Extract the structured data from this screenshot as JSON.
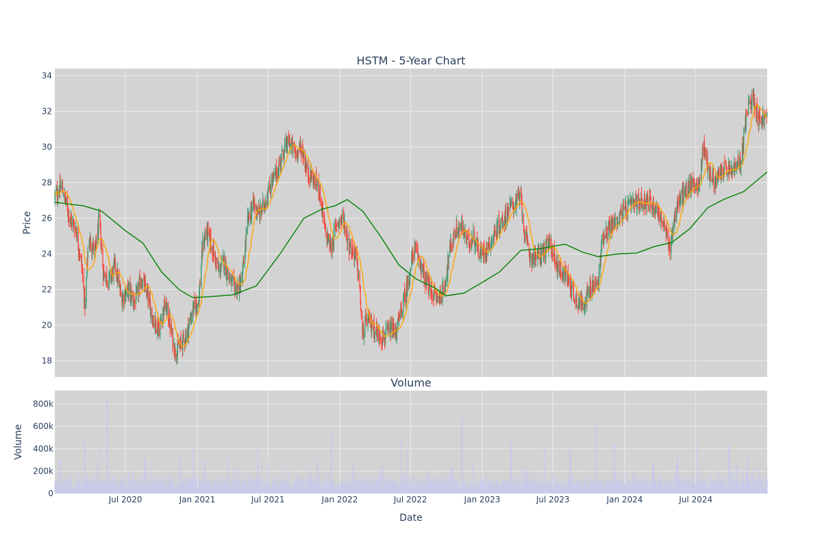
{
  "chart_data": [
    {
      "type": "candlestick",
      "title": "HSTM - 5-Year Chart",
      "ylabel": "Price",
      "ylim": [
        17.1,
        34.4
      ],
      "y_ticks": [
        "18",
        "20",
        "22",
        "24",
        "26",
        "28",
        "30",
        "32",
        "34"
      ],
      "y_tick_values": [
        18,
        20,
        22,
        24,
        26,
        28,
        30,
        32,
        34
      ],
      "x_range": [
        "2020-01-02",
        "2024-12-31"
      ],
      "grid": true,
      "colors": {
        "up": "#3d9970",
        "down": "#ff4136",
        "ma_short": "#ffa500",
        "ma_long": "#008000",
        "background": "#d3d3d3"
      },
      "price_path": [
        [
          "2020-01-02",
          27.2
        ],
        [
          "2020-01-20",
          27.8
        ],
        [
          "2020-02-10",
          26.0
        ],
        [
          "2020-02-25",
          25.4
        ],
        [
          "2020-03-10",
          23.5
        ],
        [
          "2020-03-20",
          21.0
        ],
        [
          "2020-03-28",
          24.8
        ],
        [
          "2020-04-15",
          24.2
        ],
        [
          "2020-04-25",
          26.0
        ],
        [
          "2020-05-05",
          23.0
        ],
        [
          "2020-05-20",
          22.5
        ],
        [
          "2020-06-05",
          23.4
        ],
        [
          "2020-06-20",
          21.5
        ],
        [
          "2020-07-10",
          22.0
        ],
        [
          "2020-07-25",
          21.2
        ],
        [
          "2020-08-10",
          22.6
        ],
        [
          "2020-08-25",
          21.8
        ],
        [
          "2020-09-10",
          20.3
        ],
        [
          "2020-09-25",
          19.8
        ],
        [
          "2020-10-10",
          21.2
        ],
        [
          "2020-10-20",
          20.4
        ],
        [
          "2020-11-05",
          18.5
        ],
        [
          "2020-11-20",
          18.9
        ],
        [
          "2020-12-05",
          19.5
        ],
        [
          "2020-12-20",
          20.8
        ],
        [
          "2021-01-05",
          21.5
        ],
        [
          "2021-01-15",
          24.5
        ],
        [
          "2021-01-25",
          25.3
        ],
        [
          "2021-02-10",
          24.2
        ],
        [
          "2021-02-25",
          23.0
        ],
        [
          "2021-03-10",
          23.6
        ],
        [
          "2021-03-25",
          22.5
        ],
        [
          "2021-04-10",
          22.0
        ],
        [
          "2021-04-25",
          22.4
        ],
        [
          "2021-05-10",
          25.8
        ],
        [
          "2021-05-25",
          26.8
        ],
        [
          "2021-06-10",
          26.2
        ],
        [
          "2021-06-25",
          27.0
        ],
        [
          "2021-07-10",
          28.0
        ],
        [
          "2021-07-25",
          28.6
        ],
        [
          "2021-08-10",
          29.8
        ],
        [
          "2021-08-25",
          30.3
        ],
        [
          "2021-09-10",
          29.6
        ],
        [
          "2021-09-25",
          30.0
        ],
        [
          "2021-10-10",
          28.6
        ],
        [
          "2021-10-25",
          28.2
        ],
        [
          "2021-11-10",
          27.6
        ],
        [
          "2021-11-25",
          25.2
        ],
        [
          "2021-12-10",
          24.3
        ],
        [
          "2021-12-25",
          25.8
        ],
        [
          "2022-01-10",
          26.0
        ],
        [
          "2022-01-25",
          24.5
        ],
        [
          "2022-02-10",
          23.9
        ],
        [
          "2022-02-20",
          22.5
        ],
        [
          "2022-02-28",
          19.4
        ],
        [
          "2022-03-10",
          20.3
        ],
        [
          "2022-03-25",
          20.0
        ],
        [
          "2022-04-10",
          19.5
        ],
        [
          "2022-04-25",
          19.3
        ],
        [
          "2022-05-10",
          19.7
        ],
        [
          "2022-05-25",
          19.6
        ],
        [
          "2022-06-10",
          21.0
        ],
        [
          "2022-06-25",
          22.4
        ],
        [
          "2022-07-10",
          24.3
        ],
        [
          "2022-07-25",
          23.6
        ],
        [
          "2022-08-10",
          22.4
        ],
        [
          "2022-08-25",
          21.8
        ],
        [
          "2022-09-10",
          21.5
        ],
        [
          "2022-09-25",
          22.0
        ],
        [
          "2022-10-10",
          24.2
        ],
        [
          "2022-10-25",
          25.3
        ],
        [
          "2022-11-10",
          25.5
        ],
        [
          "2022-11-25",
          24.6
        ],
        [
          "2022-12-10",
          25.0
        ],
        [
          "2022-12-25",
          24.0
        ],
        [
          "2023-01-10",
          24.2
        ],
        [
          "2023-01-25",
          24.8
        ],
        [
          "2023-02-10",
          25.5
        ],
        [
          "2023-02-25",
          25.9
        ],
        [
          "2023-03-10",
          26.6
        ],
        [
          "2023-03-25",
          26.8
        ],
        [
          "2023-04-10",
          27.2
        ],
        [
          "2023-04-20",
          25.0
        ],
        [
          "2023-05-05",
          23.8
        ],
        [
          "2023-05-25",
          23.9
        ],
        [
          "2023-06-10",
          24.2
        ],
        [
          "2023-06-25",
          24.6
        ],
        [
          "2023-07-10",
          23.4
        ],
        [
          "2023-07-25",
          23.0
        ],
        [
          "2023-08-10",
          22.6
        ],
        [
          "2023-08-25",
          21.6
        ],
        [
          "2023-09-10",
          21.2
        ],
        [
          "2023-09-25",
          21.5
        ],
        [
          "2023-10-10",
          22.2
        ],
        [
          "2023-10-25",
          22.3
        ],
        [
          "2023-11-05",
          25.0
        ],
        [
          "2023-11-20",
          25.4
        ],
        [
          "2023-12-10",
          25.8
        ],
        [
          "2023-12-25",
          26.3
        ],
        [
          "2024-01-10",
          26.6
        ],
        [
          "2024-01-25",
          26.8
        ],
        [
          "2024-02-10",
          26.9
        ],
        [
          "2024-02-25",
          27.0
        ],
        [
          "2024-03-10",
          26.8
        ],
        [
          "2024-03-25",
          26.5
        ],
        [
          "2024-04-10",
          25.6
        ],
        [
          "2024-04-25",
          24.3
        ],
        [
          "2024-05-10",
          26.4
        ],
        [
          "2024-05-25",
          27.2
        ],
        [
          "2024-06-10",
          27.6
        ],
        [
          "2024-06-25",
          28.0
        ],
        [
          "2024-07-10",
          27.8
        ],
        [
          "2024-07-20",
          30.2
        ],
        [
          "2024-08-05",
          28.5
        ],
        [
          "2024-08-20",
          28.0
        ],
        [
          "2024-09-10",
          28.8
        ],
        [
          "2024-09-25",
          28.6
        ],
        [
          "2024-10-10",
          28.8
        ],
        [
          "2024-10-25",
          29.2
        ],
        [
          "2024-11-05",
          31.4
        ],
        [
          "2024-11-15",
          32.4
        ],
        [
          "2024-11-25",
          32.8
        ],
        [
          "2024-12-10",
          31.6
        ],
        [
          "2024-12-31",
          31.6
        ]
      ],
      "ma_long": [
        [
          "2020-01-02",
          26.9
        ],
        [
          "2020-03-15",
          26.7
        ],
        [
          "2020-05-01",
          26.4
        ],
        [
          "2020-07-01",
          25.3
        ],
        [
          "2020-08-15",
          24.6
        ],
        [
          "2020-10-01",
          23.0
        ],
        [
          "2020-11-15",
          22.0
        ],
        [
          "2020-12-20",
          21.55
        ],
        [
          "2021-02-01",
          21.6
        ],
        [
          "2021-04-01",
          21.7
        ],
        [
          "2021-06-01",
          22.2
        ],
        [
          "2021-08-01",
          24.0
        ],
        [
          "2021-10-01",
          26.0
        ],
        [
          "2021-11-15",
          26.5
        ],
        [
          "2021-12-20",
          26.7
        ],
        [
          "2022-01-20",
          27.05
        ],
        [
          "2022-03-01",
          26.4
        ],
        [
          "2022-04-15",
          25.0
        ],
        [
          "2022-06-01",
          23.4
        ],
        [
          "2022-07-15",
          22.6
        ],
        [
          "2022-09-01",
          22.1
        ],
        [
          "2022-10-01",
          21.65
        ],
        [
          "2022-11-15",
          21.8
        ],
        [
          "2023-01-01",
          22.4
        ],
        [
          "2023-02-15",
          23.0
        ],
        [
          "2023-04-10",
          24.2
        ],
        [
          "2023-06-01",
          24.3
        ],
        [
          "2023-08-01",
          24.55
        ],
        [
          "2023-09-15",
          24.1
        ],
        [
          "2023-10-25",
          23.85
        ],
        [
          "2023-12-15",
          24.0
        ],
        [
          "2024-02-01",
          24.05
        ],
        [
          "2024-03-15",
          24.4
        ],
        [
          "2024-05-01",
          24.65
        ],
        [
          "2024-06-15",
          25.4
        ],
        [
          "2024-08-01",
          26.6
        ],
        [
          "2024-09-15",
          27.1
        ],
        [
          "2024-11-01",
          27.5
        ],
        [
          "2024-12-31",
          28.6
        ]
      ]
    },
    {
      "type": "bar",
      "title": "Volume",
      "xlabel": "Date",
      "ylabel": "Volume",
      "ylim": [
        0,
        920000
      ],
      "y_ticks": [
        "0",
        "200k",
        "400k",
        "600k",
        "800k"
      ],
      "y_tick_values": [
        0,
        200000,
        400000,
        600000,
        800000
      ],
      "x_ticks": [
        "Jul 2020",
        "Jan 2021",
        "Jul 2021",
        "Jan 2022",
        "Jul 2022",
        "Jan 2023",
        "Jul 2023",
        "Jan 2024",
        "Jul 2024"
      ],
      "x_tick_dates": [
        "2020-07-01",
        "2021-01-01",
        "2021-07-01",
        "2022-01-01",
        "2022-07-01",
        "2023-01-01",
        "2023-07-01",
        "2024-01-01",
        "2024-07-01"
      ],
      "bar_color": "#c9c9ec",
      "peaks": [
        [
          "2020-01-15",
          300000
        ],
        [
          "2020-03-20",
          470000
        ],
        [
          "2020-04-25",
          410000
        ],
        [
          "2020-05-15",
          860000
        ],
        [
          "2020-08-20",
          310000
        ],
        [
          "2020-11-20",
          340000
        ],
        [
          "2020-12-20",
          420000
        ],
        [
          "2021-01-20",
          290000
        ],
        [
          "2021-03-20",
          360000
        ],
        [
          "2021-06-05",
          400000
        ],
        [
          "2021-11-05",
          310000
        ],
        [
          "2021-12-10",
          570000
        ],
        [
          "2022-04-20",
          250000
        ],
        [
          "2022-06-05",
          480000
        ],
        [
          "2022-06-25",
          370000
        ],
        [
          "2022-10-15",
          250000
        ],
        [
          "2022-11-10",
          680000
        ],
        [
          "2023-03-15",
          470000
        ],
        [
          "2023-06-10",
          450000
        ],
        [
          "2023-08-15",
          390000
        ],
        [
          "2023-10-20",
          620000
        ],
        [
          "2023-12-05",
          440000
        ],
        [
          "2024-03-15",
          270000
        ],
        [
          "2024-05-15",
          320000
        ],
        [
          "2024-07-05",
          440000
        ],
        [
          "2024-09-25",
          430000
        ],
        [
          "2024-11-10",
          380000
        ]
      ]
    }
  ]
}
